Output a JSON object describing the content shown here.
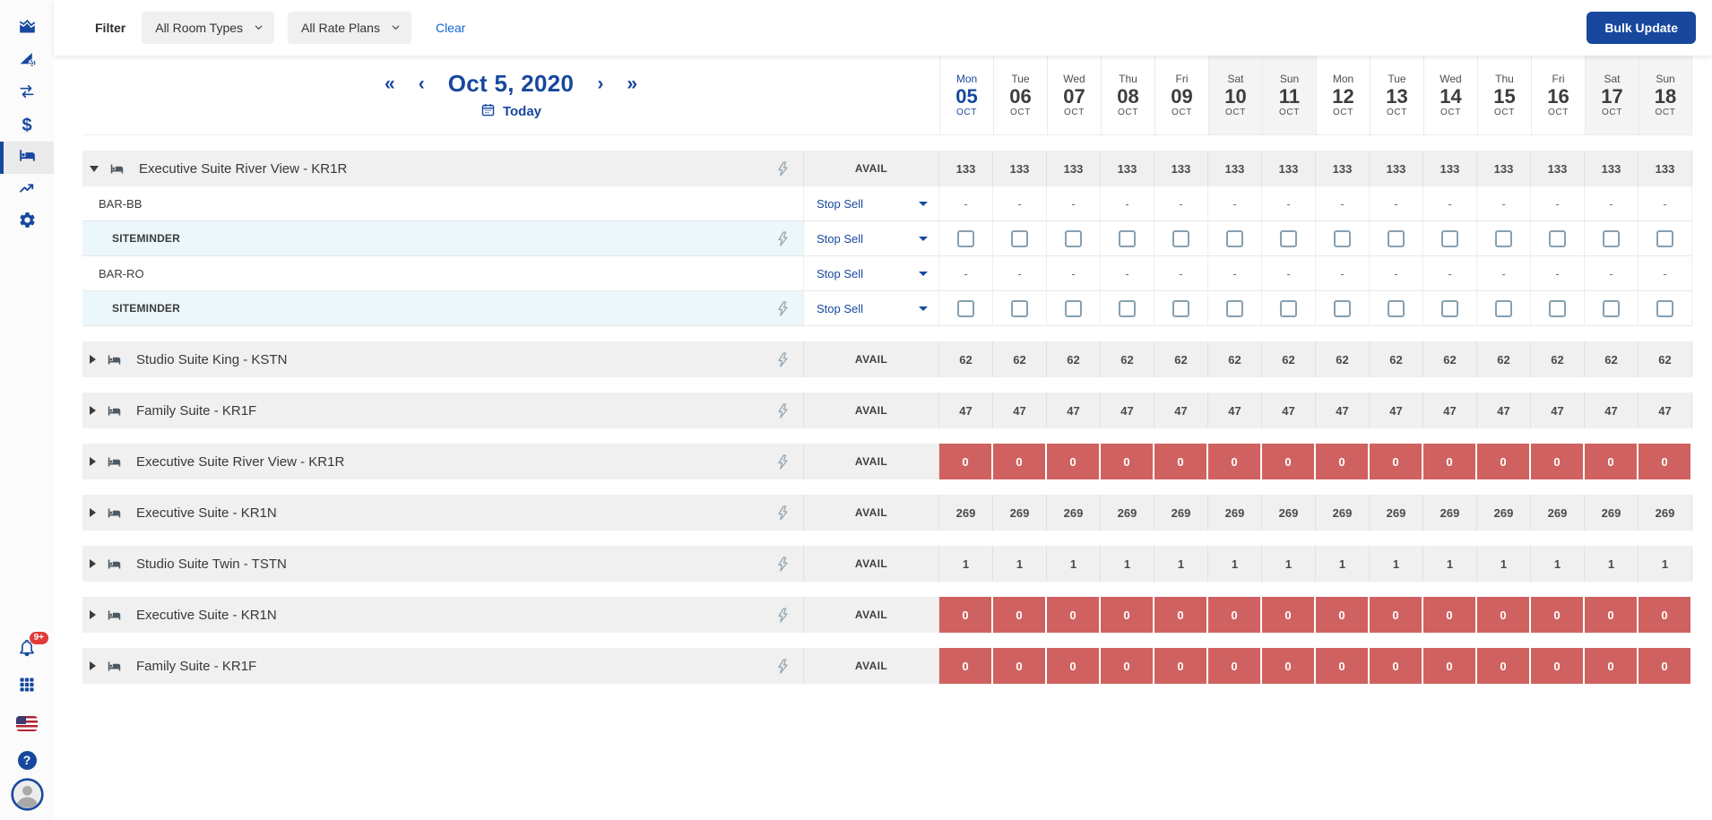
{
  "colors": {
    "navy": "#17489e",
    "link_blue": "#1566d8",
    "zero_red": "#cf6260",
    "channel_row_bg": "#ecf7fb"
  },
  "sidebar": {
    "top_items": [
      {
        "icon": "analytics-chart-icon",
        "active": false
      },
      {
        "icon": "rate-performance-icon",
        "active": false
      },
      {
        "icon": "transfers-swap-icon",
        "active": false
      },
      {
        "icon": "finance-dollar-icon",
        "active": false
      },
      {
        "icon": "inventory-bed-icon",
        "active": true
      },
      {
        "icon": "reports-trend-icon",
        "active": false
      },
      {
        "icon": "settings-gear-icon",
        "active": false
      }
    ],
    "notification_badge": "9+",
    "dollar_glyph": "$",
    "help_glyph": "?"
  },
  "filter_bar": {
    "label": "Filter",
    "room_types": "All Room Types",
    "rate_plans": "All Rate Plans",
    "clear": "Clear",
    "bulk_update": "Bulk Update"
  },
  "date_nav": {
    "first": "«",
    "prev": "‹",
    "current": "Oct 5, 2020",
    "next": "›",
    "last": "»",
    "today": "Today"
  },
  "calendar": {
    "days": [
      {
        "dow": "Mon",
        "num": "05",
        "month": "OCT",
        "active": true,
        "weekend": false
      },
      {
        "dow": "Tue",
        "num": "06",
        "month": "OCT",
        "active": false,
        "weekend": false
      },
      {
        "dow": "Wed",
        "num": "07",
        "month": "OCT",
        "active": false,
        "weekend": false
      },
      {
        "dow": "Thu",
        "num": "08",
        "month": "OCT",
        "active": false,
        "weekend": false
      },
      {
        "dow": "Fri",
        "num": "09",
        "month": "OCT",
        "active": false,
        "weekend": false
      },
      {
        "dow": "Sat",
        "num": "10",
        "month": "OCT",
        "active": false,
        "weekend": true
      },
      {
        "dow": "Sun",
        "num": "11",
        "month": "OCT",
        "active": false,
        "weekend": true
      },
      {
        "dow": "Mon",
        "num": "12",
        "month": "OCT",
        "active": false,
        "weekend": false
      },
      {
        "dow": "Tue",
        "num": "13",
        "month": "OCT",
        "active": false,
        "weekend": false
      },
      {
        "dow": "Wed",
        "num": "14",
        "month": "OCT",
        "active": false,
        "weekend": false
      },
      {
        "dow": "Thu",
        "num": "15",
        "month": "OCT",
        "active": false,
        "weekend": false
      },
      {
        "dow": "Fri",
        "num": "16",
        "month": "OCT",
        "active": false,
        "weekend": false
      },
      {
        "dow": "Sat",
        "num": "17",
        "month": "OCT",
        "active": false,
        "weekend": true
      },
      {
        "dow": "Sun",
        "num": "18",
        "month": "OCT",
        "active": false,
        "weekend": true
      }
    ]
  },
  "grid": {
    "avail_label": "AVAIL",
    "stop_sell_label": "Stop Sell",
    "dash": "-",
    "groups": [
      {
        "label": "Executive Suite River View - KR1R",
        "expanded": true,
        "zero": false,
        "avail": [
          133,
          133,
          133,
          133,
          133,
          133,
          133,
          133,
          133,
          133,
          133,
          133,
          133,
          133
        ],
        "plans": [
          {
            "label": "BAR-BB",
            "level": "rate",
            "cells": "dash"
          },
          {
            "label": "SITEMINDER",
            "level": "channel",
            "cells": "checkbox"
          },
          {
            "label": "BAR-RO",
            "level": "rate",
            "cells": "dash"
          },
          {
            "label": "SITEMINDER",
            "level": "channel",
            "cells": "checkbox"
          }
        ]
      },
      {
        "label": "Studio Suite King - KSTN",
        "expanded": false,
        "zero": false,
        "avail": [
          62,
          62,
          62,
          62,
          62,
          62,
          62,
          62,
          62,
          62,
          62,
          62,
          62,
          62
        ],
        "plans": []
      },
      {
        "label": "Family Suite - KR1F",
        "expanded": false,
        "zero": false,
        "avail": [
          47,
          47,
          47,
          47,
          47,
          47,
          47,
          47,
          47,
          47,
          47,
          47,
          47,
          47
        ],
        "plans": []
      },
      {
        "label": "Executive Suite River View - KR1R",
        "expanded": false,
        "zero": true,
        "avail": [
          0,
          0,
          0,
          0,
          0,
          0,
          0,
          0,
          0,
          0,
          0,
          0,
          0,
          0
        ],
        "plans": []
      },
      {
        "label": "Executive Suite - KR1N",
        "expanded": false,
        "zero": false,
        "avail": [
          269,
          269,
          269,
          269,
          269,
          269,
          269,
          269,
          269,
          269,
          269,
          269,
          269,
          269
        ],
        "plans": []
      },
      {
        "label": "Studio Suite Twin - TSTN",
        "expanded": false,
        "zero": false,
        "avail": [
          1,
          1,
          1,
          1,
          1,
          1,
          1,
          1,
          1,
          1,
          1,
          1,
          1,
          1
        ],
        "plans": []
      },
      {
        "label": "Executive Suite - KR1N",
        "expanded": false,
        "zero": true,
        "avail": [
          0,
          0,
          0,
          0,
          0,
          0,
          0,
          0,
          0,
          0,
          0,
          0,
          0,
          0
        ],
        "plans": []
      },
      {
        "label": "Family Suite - KR1F",
        "expanded": false,
        "zero": true,
        "avail": [
          0,
          0,
          0,
          0,
          0,
          0,
          0,
          0,
          0,
          0,
          0,
          0,
          0,
          0
        ],
        "plans": []
      }
    ]
  }
}
